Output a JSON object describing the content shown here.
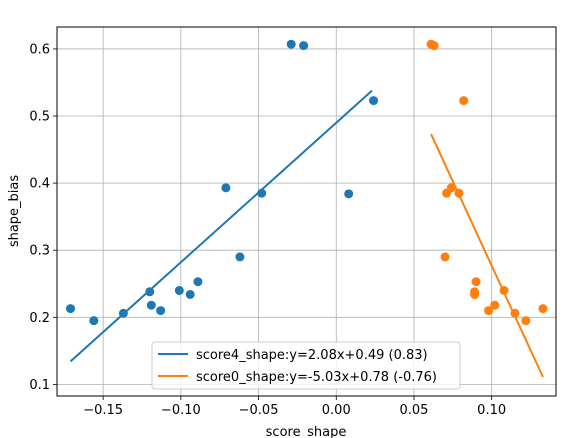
{
  "chart_data": {
    "type": "scatter",
    "title": "",
    "xlabel": "score_shape",
    "ylabel": "shape_bias",
    "xlim": [
      -0.1797,
      0.1414
    ],
    "ylim": [
      0.0827,
      0.6327
    ],
    "xticks": [
      -0.15,
      -0.1,
      -0.05,
      0.0,
      0.05,
      0.1
    ],
    "xtick_labels": [
      "−0.15",
      "−0.10",
      "−0.05",
      "0.00",
      "0.05",
      "0.10"
    ],
    "yticks": [
      0.1,
      0.2,
      0.3,
      0.4,
      0.5,
      0.6
    ],
    "ytick_labels": [
      "0.1",
      "0.2",
      "0.3",
      "0.4",
      "0.5",
      "0.6"
    ],
    "grid": true,
    "legend_position": "bottom-center",
    "series": [
      {
        "name": "score4_shape",
        "color": "#1f77b4",
        "points": [
          [
            -0.171,
            0.213
          ],
          [
            -0.156,
            0.195
          ],
          [
            -0.137,
            0.206
          ],
          [
            -0.12,
            0.238
          ],
          [
            -0.119,
            0.218
          ],
          [
            -0.113,
            0.21
          ],
          [
            -0.101,
            0.24
          ],
          [
            -0.094,
            0.234
          ],
          [
            -0.089,
            0.253
          ],
          [
            -0.071,
            0.393
          ],
          [
            -0.062,
            0.29
          ],
          [
            -0.048,
            0.385
          ],
          [
            -0.029,
            0.607
          ],
          [
            -0.021,
            0.605
          ],
          [
            0.008,
            0.384
          ],
          [
            0.024,
            0.523
          ]
        ],
        "fit": {
          "slope": 2.08,
          "intercept": 0.49,
          "x_range": [
            -0.171,
            0.023
          ]
        },
        "legend_label": "score4_shape:y=2.08x+0.49 (0.83)"
      },
      {
        "name": "score0_shape",
        "color": "#ff7f0e",
        "points": [
          [
            0.061,
            0.607
          ],
          [
            0.063,
            0.605
          ],
          [
            0.07,
            0.29
          ],
          [
            0.071,
            0.385
          ],
          [
            0.074,
            0.393
          ],
          [
            0.079,
            0.385
          ],
          [
            0.082,
            0.523
          ],
          [
            0.089,
            0.234
          ],
          [
            0.089,
            0.238
          ],
          [
            0.09,
            0.253
          ],
          [
            0.098,
            0.21
          ],
          [
            0.102,
            0.218
          ],
          [
            0.108,
            0.24
          ],
          [
            0.115,
            0.206
          ],
          [
            0.122,
            0.195
          ],
          [
            0.133,
            0.213
          ]
        ],
        "fit": {
          "slope": -5.03,
          "intercept": 0.78,
          "x_range": [
            0.061,
            0.133
          ]
        },
        "legend_label": "score0_shape:y=-5.03x+0.78 (-0.76)"
      }
    ]
  }
}
